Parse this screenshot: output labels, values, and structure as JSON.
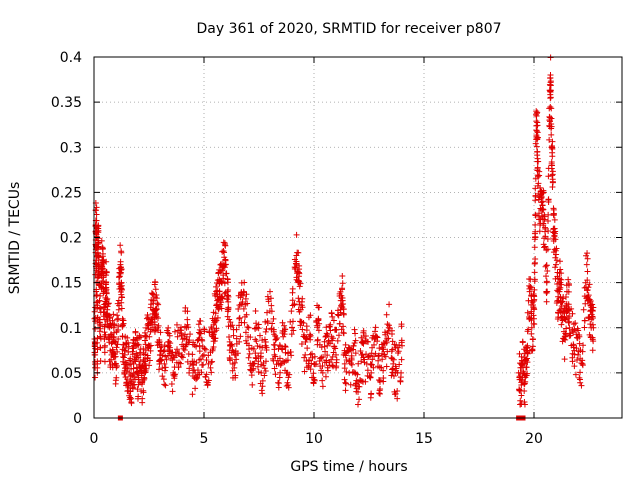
{
  "chart_data": {
    "type": "scatter",
    "title": "Day 361 of 2020, SRMTID for receiver p807",
    "xlabel": "GPS time / hours",
    "ylabel": "SRMTID / TECUs",
    "xlim": [
      0,
      24
    ],
    "ylim": [
      0,
      0.4
    ],
    "x_ticks": [
      0,
      5,
      10,
      15,
      20
    ],
    "x_tick_labels": [
      "0",
      "5",
      "10",
      "15",
      "20"
    ],
    "y_ticks": [
      0,
      0.05,
      0.1,
      0.15,
      0.2,
      0.25,
      0.3,
      0.35,
      0.4
    ],
    "y_tick_labels": [
      "0",
      "0.05",
      "0.1",
      "0.15",
      "0.2",
      "0.25",
      "0.3",
      "0.35",
      "0.4"
    ],
    "grid": true,
    "marker": "+",
    "color": "#e00000",
    "series": [
      {
        "name": "SRMTID",
        "description": "Dense cluster of + markers from ~0 to ~14.1 h and ~19.3 to ~22.7 h; point list is representative sampling",
        "points": [
          [
            0.02,
            0.11
          ],
          [
            0.05,
            0.07
          ],
          [
            0.08,
            0.23
          ],
          [
            0.1,
            0.15
          ],
          [
            0.12,
            0.21
          ],
          [
            0.15,
            0.06
          ],
          [
            0.18,
            0.18
          ],
          [
            0.2,
            0.19
          ],
          [
            0.25,
            0.13
          ],
          [
            0.3,
            0.09
          ],
          [
            0.35,
            0.17
          ],
          [
            0.4,
            0.16
          ],
          [
            0.45,
            0.14
          ],
          [
            0.5,
            0.08
          ],
          [
            0.55,
            0.15
          ],
          [
            0.6,
            0.12
          ],
          [
            0.7,
            0.09
          ],
          [
            0.8,
            0.07
          ],
          [
            0.9,
            0.1
          ],
          [
            1.0,
            0.06
          ],
          [
            1.1,
            0.11
          ],
          [
            1.2,
            0.17
          ],
          [
            1.25,
            0.15
          ],
          [
            1.3,
            0.09
          ],
          [
            1.4,
            0.07
          ],
          [
            1.5,
            0.06
          ],
          [
            1.6,
            0.05
          ],
          [
            1.7,
            0.04
          ],
          [
            1.8,
            0.06
          ],
          [
            1.9,
            0.08
          ],
          [
            2.0,
            0.05
          ],
          [
            2.1,
            0.07
          ],
          [
            2.2,
            0.04
          ],
          [
            2.3,
            0.06
          ],
          [
            2.4,
            0.09
          ],
          [
            2.5,
            0.08
          ],
          [
            2.6,
            0.11
          ],
          [
            2.7,
            0.13
          ],
          [
            2.8,
            0.12
          ],
          [
            2.9,
            0.1
          ],
          [
            3.0,
            0.07
          ],
          [
            3.2,
            0.06
          ],
          [
            3.4,
            0.08
          ],
          [
            3.6,
            0.05
          ],
          [
            3.8,
            0.09
          ],
          [
            4.0,
            0.07
          ],
          [
            4.2,
            0.1
          ],
          [
            4.4,
            0.06
          ],
          [
            4.6,
            0.05
          ],
          [
            4.8,
            0.08
          ],
          [
            5.0,
            0.07
          ],
          [
            5.2,
            0.06
          ],
          [
            5.4,
            0.09
          ],
          [
            5.5,
            0.11
          ],
          [
            5.6,
            0.13
          ],
          [
            5.7,
            0.14
          ],
          [
            5.8,
            0.15
          ],
          [
            5.9,
            0.17
          ],
          [
            6.0,
            0.16
          ],
          [
            6.1,
            0.12
          ],
          [
            6.2,
            0.08
          ],
          [
            6.4,
            0.07
          ],
          [
            6.6,
            0.11
          ],
          [
            6.8,
            0.14
          ],
          [
            7.0,
            0.09
          ],
          [
            7.2,
            0.06
          ],
          [
            7.4,
            0.1
          ],
          [
            7.6,
            0.05
          ],
          [
            7.8,
            0.08
          ],
          [
            8.0,
            0.14
          ],
          [
            8.2,
            0.07
          ],
          [
            8.4,
            0.06
          ],
          [
            8.6,
            0.09
          ],
          [
            8.8,
            0.05
          ],
          [
            9.0,
            0.1
          ],
          [
            9.2,
            0.18
          ],
          [
            9.3,
            0.15
          ],
          [
            9.4,
            0.12
          ],
          [
            9.6,
            0.07
          ],
          [
            9.8,
            0.09
          ],
          [
            10.0,
            0.06
          ],
          [
            10.2,
            0.11
          ],
          [
            10.4,
            0.05
          ],
          [
            10.6,
            0.08
          ],
          [
            10.8,
            0.09
          ],
          [
            11.0,
            0.07
          ],
          [
            11.2,
            0.12
          ],
          [
            11.3,
            0.13
          ],
          [
            11.4,
            0.06
          ],
          [
            11.6,
            0.05
          ],
          [
            11.8,
            0.08
          ],
          [
            12.0,
            0.04
          ],
          [
            12.2,
            0.07
          ],
          [
            12.4,
            0.06
          ],
          [
            12.6,
            0.05
          ],
          [
            12.8,
            0.09
          ],
          [
            13.0,
            0.04
          ],
          [
            13.2,
            0.07
          ],
          [
            13.4,
            0.1
          ],
          [
            13.6,
            0.06
          ],
          [
            13.8,
            0.05
          ],
          [
            14.0,
            0.08
          ],
          [
            19.3,
            0.05
          ],
          [
            19.4,
            0.03
          ],
          [
            19.5,
            0.06
          ],
          [
            19.6,
            0.04
          ],
          [
            19.7,
            0.08
          ],
          [
            19.8,
            0.14
          ],
          [
            19.9,
            0.1
          ],
          [
            20.0,
            0.11
          ],
          [
            20.05,
            0.2
          ],
          [
            20.1,
            0.34
          ],
          [
            20.15,
            0.31
          ],
          [
            20.2,
            0.26
          ],
          [
            20.3,
            0.22
          ],
          [
            20.4,
            0.24
          ],
          [
            20.5,
            0.19
          ],
          [
            20.6,
            0.14
          ],
          [
            20.7,
            0.33
          ],
          [
            20.75,
            0.38
          ],
          [
            20.8,
            0.3
          ],
          [
            20.85,
            0.27
          ],
          [
            20.9,
            0.21
          ],
          [
            21.0,
            0.17
          ],
          [
            21.1,
            0.13
          ],
          [
            21.2,
            0.15
          ],
          [
            21.3,
            0.11
          ],
          [
            21.4,
            0.09
          ],
          [
            21.5,
            0.14
          ],
          [
            21.6,
            0.12
          ],
          [
            21.8,
            0.08
          ],
          [
            22.0,
            0.07
          ],
          [
            22.2,
            0.06
          ],
          [
            22.4,
            0.17
          ],
          [
            22.5,
            0.13
          ],
          [
            22.6,
            0.1
          ],
          [
            22.7,
            0.1
          ]
        ]
      }
    ],
    "zero_markers": [
      1.2,
      19.3,
      19.5
    ]
  }
}
